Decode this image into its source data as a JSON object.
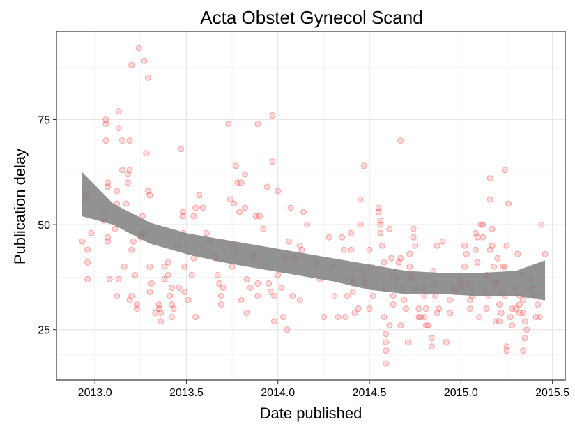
{
  "chart_data": {
    "type": "scatter",
    "title": "Acta Obstet Gynecol Scand",
    "xlabel": "Date published",
    "ylabel": "Publication delay",
    "xlim": [
      2012.79,
      2015.57
    ],
    "ylim": [
      13,
      96
    ],
    "x_ticks": [
      2013.0,
      2013.5,
      2014.0,
      2014.5,
      2015.0,
      2015.5
    ],
    "x_tick_labels": [
      "2013.0",
      "2013.5",
      "2014.0",
      "2014.5",
      "2015.0",
      "2015.5"
    ],
    "y_ticks": [
      25,
      50,
      75
    ],
    "y_tick_labels": [
      "25",
      "50",
      "75"
    ],
    "grid": true,
    "legend": "none",
    "point_color": "#f08080",
    "band_color": "#7f7f7f",
    "points": [
      [
        2012.93,
        46
      ],
      [
        2012.95,
        57
      ],
      [
        2012.95,
        56
      ],
      [
        2012.96,
        44
      ],
      [
        2012.96,
        41
      ],
      [
        2012.96,
        37
      ],
      [
        2012.98,
        48
      ],
      [
        2013.05,
        53
      ],
      [
        2013.05,
        51
      ],
      [
        2013.06,
        75
      ],
      [
        2013.06,
        74
      ],
      [
        2013.06,
        70
      ],
      [
        2013.07,
        60
      ],
      [
        2013.07,
        59
      ],
      [
        2013.07,
        47
      ],
      [
        2013.07,
        46
      ],
      [
        2013.08,
        37
      ],
      [
        2013.11,
        49
      ],
      [
        2013.12,
        58
      ],
      [
        2013.12,
        55
      ],
      [
        2013.13,
        77
      ],
      [
        2013.13,
        73
      ],
      [
        2013.13,
        37
      ],
      [
        2013.12,
        33
      ],
      [
        2013.15,
        70
      ],
      [
        2013.15,
        63
      ],
      [
        2013.16,
        40
      ],
      [
        2013.17,
        55
      ],
      [
        2013.18,
        60
      ],
      [
        2013.18,
        62
      ],
      [
        2013.19,
        63
      ],
      [
        2013.19,
        70
      ],
      [
        2013.19,
        32
      ],
      [
        2013.2,
        88
      ],
      [
        2013.2,
        44
      ],
      [
        2013.2,
        33
      ],
      [
        2013.21,
        46
      ],
      [
        2013.22,
        38
      ],
      [
        2013.23,
        31
      ],
      [
        2013.23,
        30
      ],
      [
        2013.24,
        92
      ],
      [
        2013.25,
        47
      ],
      [
        2013.26,
        48
      ],
      [
        2013.26,
        52
      ],
      [
        2013.27,
        89
      ],
      [
        2013.27,
        48
      ],
      [
        2013.28,
        67
      ],
      [
        2013.29,
        85
      ],
      [
        2013.29,
        58
      ],
      [
        2013.3,
        57
      ],
      [
        2013.3,
        40
      ],
      [
        2013.3,
        34
      ],
      [
        2013.31,
        36
      ],
      [
        2013.33,
        29
      ],
      [
        2013.35,
        31
      ],
      [
        2013.35,
        30
      ],
      [
        2013.36,
        29
      ],
      [
        2013.36,
        27
      ],
      [
        2013.38,
        40
      ],
      [
        2013.38,
        37
      ],
      [
        2013.4,
        38
      ],
      [
        2013.4,
        41
      ],
      [
        2013.41,
        33
      ],
      [
        2013.42,
        35
      ],
      [
        2013.42,
        31
      ],
      [
        2013.42,
        28
      ],
      [
        2013.43,
        30
      ],
      [
        2013.45,
        45
      ],
      [
        2013.46,
        35
      ],
      [
        2013.47,
        68
      ],
      [
        2013.48,
        53
      ],
      [
        2013.48,
        52
      ],
      [
        2013.48,
        48
      ],
      [
        2013.49,
        40
      ],
      [
        2013.49,
        34
      ],
      [
        2013.51,
        32
      ],
      [
        2013.53,
        38
      ],
      [
        2013.54,
        52
      ],
      [
        2013.54,
        42
      ],
      [
        2013.55,
        28
      ],
      [
        2013.55,
        54
      ],
      [
        2013.57,
        57
      ],
      [
        2013.59,
        54
      ],
      [
        2013.61,
        48
      ],
      [
        2013.63,
        46
      ],
      [
        2013.66,
        42
      ],
      [
        2013.67,
        38
      ],
      [
        2013.68,
        36
      ],
      [
        2013.69,
        31
      ],
      [
        2013.69,
        33
      ],
      [
        2013.7,
        35
      ],
      [
        2013.73,
        74
      ],
      [
        2013.74,
        56
      ],
      [
        2013.75,
        40
      ],
      [
        2013.75,
        45
      ],
      [
        2013.76,
        43
      ],
      [
        2013.76,
        55
      ],
      [
        2013.77,
        64
      ],
      [
        2013.78,
        44
      ],
      [
        2013.78,
        60
      ],
      [
        2013.79,
        53
      ],
      [
        2013.8,
        60
      ],
      [
        2013.8,
        32
      ],
      [
        2013.82,
        54
      ],
      [
        2013.82,
        62
      ],
      [
        2013.83,
        37
      ],
      [
        2013.83,
        29
      ],
      [
        2013.85,
        35
      ],
      [
        2013.86,
        43
      ],
      [
        2013.87,
        42
      ],
      [
        2013.88,
        52
      ],
      [
        2013.89,
        36
      ],
      [
        2013.89,
        33
      ],
      [
        2013.89,
        74
      ],
      [
        2013.9,
        52
      ],
      [
        2013.92,
        49
      ],
      [
        2013.93,
        40
      ],
      [
        2013.94,
        59
      ],
      [
        2013.95,
        36
      ],
      [
        2013.96,
        34
      ],
      [
        2013.97,
        65
      ],
      [
        2013.97,
        76
      ],
      [
        2013.98,
        33
      ],
      [
        2013.98,
        27
      ],
      [
        2014.0,
        58
      ],
      [
        2014.0,
        38
      ],
      [
        2014.02,
        35
      ],
      [
        2014.03,
        28
      ],
      [
        2014.04,
        42
      ],
      [
        2014.05,
        25
      ],
      [
        2014.06,
        46
      ],
      [
        2014.07,
        54
      ],
      [
        2014.08,
        33
      ],
      [
        2014.09,
        42
      ],
      [
        2014.12,
        32
      ],
      [
        2014.12,
        45
      ],
      [
        2014.13,
        44
      ],
      [
        2014.14,
        53
      ],
      [
        2014.16,
        50
      ],
      [
        2014.21,
        41
      ],
      [
        2014.23,
        37
      ],
      [
        2014.25,
        28
      ],
      [
        2014.28,
        47
      ],
      [
        2014.3,
        40
      ],
      [
        2014.31,
        33
      ],
      [
        2014.33,
        28
      ],
      [
        2014.35,
        47
      ],
      [
        2014.36,
        44
      ],
      [
        2014.37,
        28
      ],
      [
        2014.38,
        33
      ],
      [
        2014.4,
        48
      ],
      [
        2014.4,
        44
      ],
      [
        2014.41,
        36
      ],
      [
        2014.41,
        37
      ],
      [
        2014.41,
        34
      ],
      [
        2014.42,
        29
      ],
      [
        2014.44,
        30
      ],
      [
        2014.45,
        56
      ],
      [
        2014.45,
        50
      ],
      [
        2014.46,
        39
      ],
      [
        2014.47,
        37
      ],
      [
        2014.47,
        64
      ],
      [
        2014.48,
        36
      ],
      [
        2014.5,
        30
      ],
      [
        2014.5,
        44
      ],
      [
        2014.51,
        40
      ],
      [
        2014.52,
        33
      ],
      [
        2014.55,
        54
      ],
      [
        2014.55,
        53
      ],
      [
        2014.56,
        51
      ],
      [
        2014.56,
        50
      ],
      [
        2014.56,
        48
      ],
      [
        2014.57,
        45
      ],
      [
        2014.58,
        41
      ],
      [
        2014.58,
        35
      ],
      [
        2014.58,
        28
      ],
      [
        2014.59,
        24
      ],
      [
        2014.59,
        22
      ],
      [
        2014.59,
        20
      ],
      [
        2014.59,
        17
      ],
      [
        2014.61,
        26
      ],
      [
        2014.61,
        49
      ],
      [
        2014.62,
        42
      ],
      [
        2014.63,
        38
      ],
      [
        2014.63,
        33
      ],
      [
        2014.63,
        31
      ],
      [
        2014.65,
        37
      ],
      [
        2014.66,
        41
      ],
      [
        2014.67,
        42
      ],
      [
        2014.67,
        26
      ],
      [
        2014.67,
        70
      ],
      [
        2014.68,
        35
      ],
      [
        2014.69,
        32
      ],
      [
        2014.7,
        30
      ],
      [
        2014.71,
        22
      ],
      [
        2014.72,
        43
      ],
      [
        2014.72,
        40
      ],
      [
        2014.73,
        38
      ],
      [
        2014.73,
        37
      ],
      [
        2014.74,
        49
      ],
      [
        2014.74,
        47
      ],
      [
        2014.75,
        45
      ],
      [
        2014.75,
        35
      ],
      [
        2014.77,
        30
      ],
      [
        2014.77,
        28
      ],
      [
        2014.78,
        28
      ],
      [
        2014.79,
        35
      ],
      [
        2014.8,
        33
      ],
      [
        2014.8,
        28
      ],
      [
        2014.81,
        30
      ],
      [
        2014.81,
        26
      ],
      [
        2014.82,
        26
      ],
      [
        2014.84,
        23
      ],
      [
        2014.84,
        21
      ],
      [
        2014.85,
        39
      ],
      [
        2014.86,
        36
      ],
      [
        2014.86,
        33
      ],
      [
        2014.87,
        29
      ],
      [
        2014.87,
        45
      ],
      [
        2014.88,
        30
      ],
      [
        2014.9,
        46
      ],
      [
        2014.92,
        22
      ],
      [
        2014.94,
        32
      ],
      [
        2014.94,
        29
      ],
      [
        2014.96,
        35
      ],
      [
        2014.97,
        34
      ],
      [
        2014.99,
        37
      ],
      [
        2015.0,
        36
      ],
      [
        2015.0,
        35
      ],
      [
        2015.02,
        45
      ],
      [
        2015.02,
        40
      ],
      [
        2015.03,
        43
      ],
      [
        2015.03,
        36
      ],
      [
        2015.05,
        32
      ],
      [
        2015.05,
        30
      ],
      [
        2015.06,
        35
      ],
      [
        2015.06,
        33
      ],
      [
        2015.08,
        44
      ],
      [
        2015.08,
        48
      ],
      [
        2015.09,
        47
      ],
      [
        2015.09,
        41
      ],
      [
        2015.1,
        28
      ],
      [
        2015.11,
        50
      ],
      [
        2015.12,
        50
      ],
      [
        2015.12,
        47
      ],
      [
        2015.13,
        34
      ],
      [
        2015.14,
        38
      ],
      [
        2015.14,
        30
      ],
      [
        2015.15,
        33
      ],
      [
        2015.16,
        61
      ],
      [
        2015.16,
        56
      ],
      [
        2015.16,
        44
      ],
      [
        2015.17,
        49
      ],
      [
        2015.17,
        45
      ],
      [
        2015.18,
        40
      ],
      [
        2015.18,
        36
      ],
      [
        2015.19,
        27
      ],
      [
        2015.2,
        42
      ],
      [
        2015.2,
        36
      ],
      [
        2015.21,
        31
      ],
      [
        2015.21,
        27
      ],
      [
        2015.22,
        34
      ],
      [
        2015.22,
        29
      ],
      [
        2015.23,
        40
      ],
      [
        2015.24,
        63
      ],
      [
        2015.24,
        40
      ],
      [
        2015.24,
        33
      ],
      [
        2015.25,
        45
      ],
      [
        2015.25,
        21
      ],
      [
        2015.25,
        20
      ],
      [
        2015.26,
        55
      ],
      [
        2015.27,
        28
      ],
      [
        2015.28,
        30
      ],
      [
        2015.28,
        26
      ],
      [
        2015.3,
        35
      ],
      [
        2015.31,
        43
      ],
      [
        2015.32,
        33
      ],
      [
        2015.32,
        31
      ],
      [
        2015.32,
        29
      ],
      [
        2015.33,
        38
      ],
      [
        2015.34,
        29
      ],
      [
        2015.34,
        32
      ],
      [
        2015.35,
        27
      ],
      [
        2015.35,
        23
      ],
      [
        2015.36,
        25
      ],
      [
        2015.38,
        37
      ],
      [
        2015.39,
        35
      ],
      [
        2015.4,
        33
      ],
      [
        2015.41,
        28
      ],
      [
        2015.42,
        31
      ],
      [
        2015.43,
        28
      ],
      [
        2015.44,
        50
      ],
      [
        2015.46,
        43
      ],
      [
        2015.34,
        20
      ],
      [
        2015.3,
        30
      ]
    ],
    "band": {
      "x": [
        2012.93,
        2013.1,
        2013.3,
        2013.5,
        2013.7,
        2013.9,
        2014.1,
        2014.3,
        2014.5,
        2014.7,
        2014.9,
        2015.1,
        2015.3,
        2015.46
      ],
      "upper": [
        62.5,
        55.0,
        50.5,
        48.0,
        46.5,
        45.0,
        43.5,
        42.0,
        40.5,
        39.0,
        38.5,
        38.5,
        39.0,
        41.5
      ],
      "lower": [
        52.0,
        50.0,
        45.5,
        43.0,
        41.0,
        39.5,
        38.0,
        36.5,
        34.5,
        33.5,
        33.5,
        33.0,
        33.0,
        32.0
      ]
    }
  }
}
